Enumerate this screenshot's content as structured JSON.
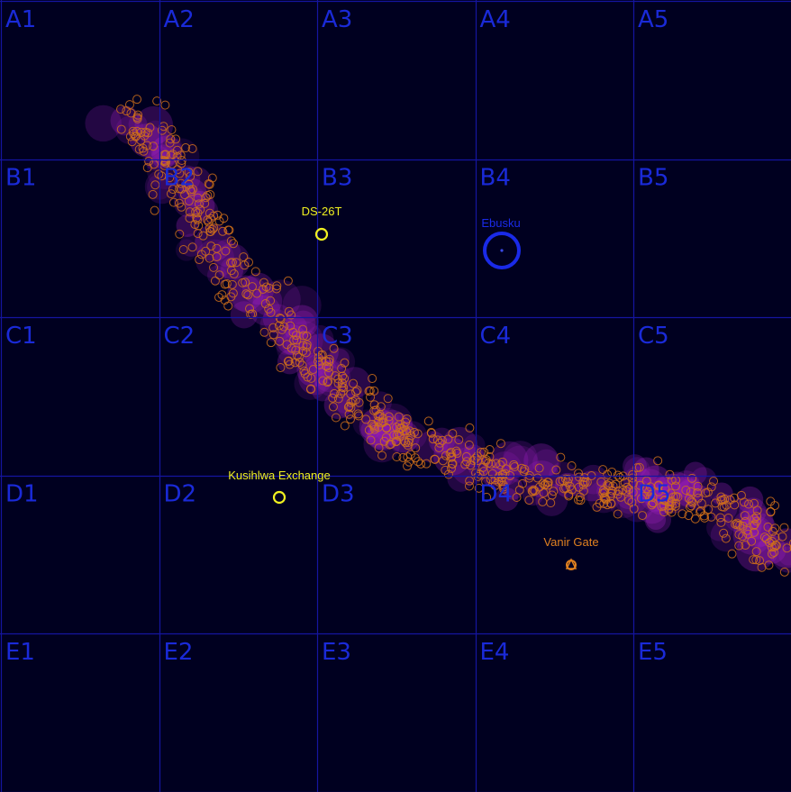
{
  "colors": {
    "background": "#000020",
    "grid": "#1515a0",
    "cell_label": "#1a2ad8",
    "asteroid_fill": "#a020c0",
    "asteroid_ring": "#d0701a",
    "poi_yellow": "#f0f020",
    "poi_orange": "#e08020",
    "poi_blue": "#1a2ae8"
  },
  "grid": {
    "rows": [
      "A",
      "B",
      "C",
      "D",
      "E"
    ],
    "cols": [
      "1",
      "2",
      "3",
      "4",
      "5"
    ]
  },
  "pois": [
    {
      "id": "ds26t",
      "label": "DS-26T",
      "color": "#f0f020",
      "marker": "ring-small"
    },
    {
      "id": "ebusku",
      "label": "Ebusku",
      "color": "#1a2ae8",
      "marker": "ring-large"
    },
    {
      "id": "kusihlwa",
      "label": "Kusihlwa Exchange",
      "color": "#f0f020",
      "marker": "ring-small"
    },
    {
      "id": "vanir",
      "label": "Vanir Gate",
      "color": "#e08020",
      "marker": "gate"
    }
  ],
  "asteroid_belt": {
    "description_icon": "asteroid-field",
    "path_points_cells": [
      "A2",
      "B2",
      "C2",
      "C3",
      "D3",
      "D4",
      "D5"
    ]
  }
}
